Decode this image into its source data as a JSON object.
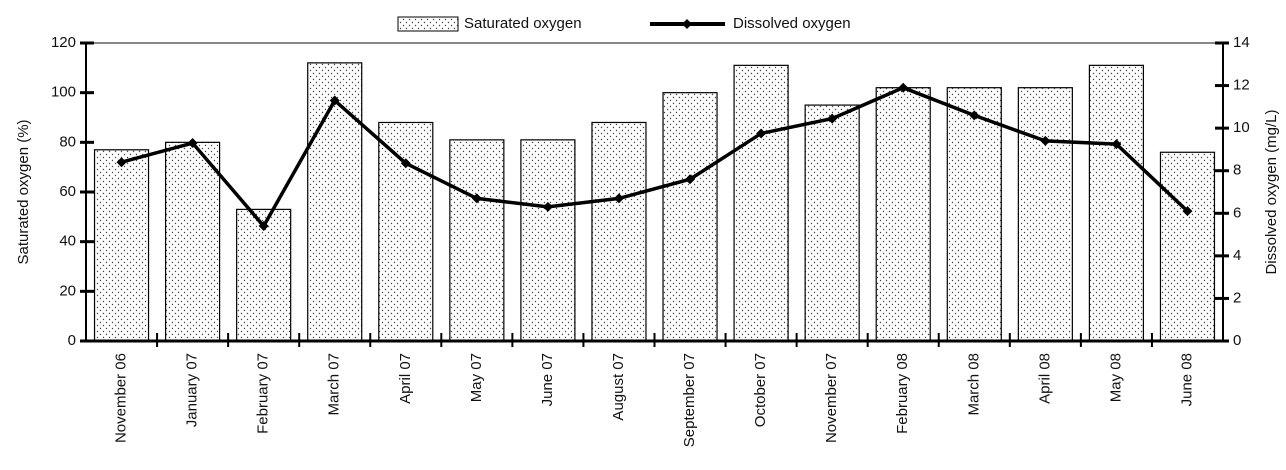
{
  "chart_data": {
    "type": "bar-line",
    "categories": [
      "November 06",
      "January 07",
      "February 07",
      "March 07",
      "April 07",
      "May 07",
      "June 07",
      "August 07",
      "September 07",
      "October 07",
      "November 07",
      "February 08",
      "March 08",
      "April 08",
      "May 08",
      "June 08"
    ],
    "series": [
      {
        "name": "Saturated oxygen",
        "type": "bar",
        "color": "#ffffff",
        "values": [
          77,
          80,
          53,
          112,
          88,
          81,
          81,
          88,
          100,
          111,
          95,
          102,
          102,
          102,
          111,
          76
        ]
      },
      {
        "name": "Dissolved oxygen",
        "type": "line",
        "axis": "y2",
        "color": "#000000",
        "values": [
          8.4,
          9.3,
          5.4,
          11.3,
          8.35,
          6.7,
          6.3,
          6.7,
          7.6,
          9.75,
          10.45,
          11.9,
          10.6,
          9.4,
          9.25,
          6.1
        ]
      }
    ],
    "ylabel": "Saturated oxygen (%)",
    "y2label": "Dissolved oxygen (mg/L)",
    "ylim": [
      0,
      120
    ],
    "yticks": [
      0,
      20,
      40,
      60,
      80,
      100,
      120
    ],
    "y2lim": [
      0,
      14
    ],
    "y2ticks": [
      0,
      2,
      4,
      6,
      8,
      10,
      12,
      14
    ],
    "legend": "top"
  }
}
